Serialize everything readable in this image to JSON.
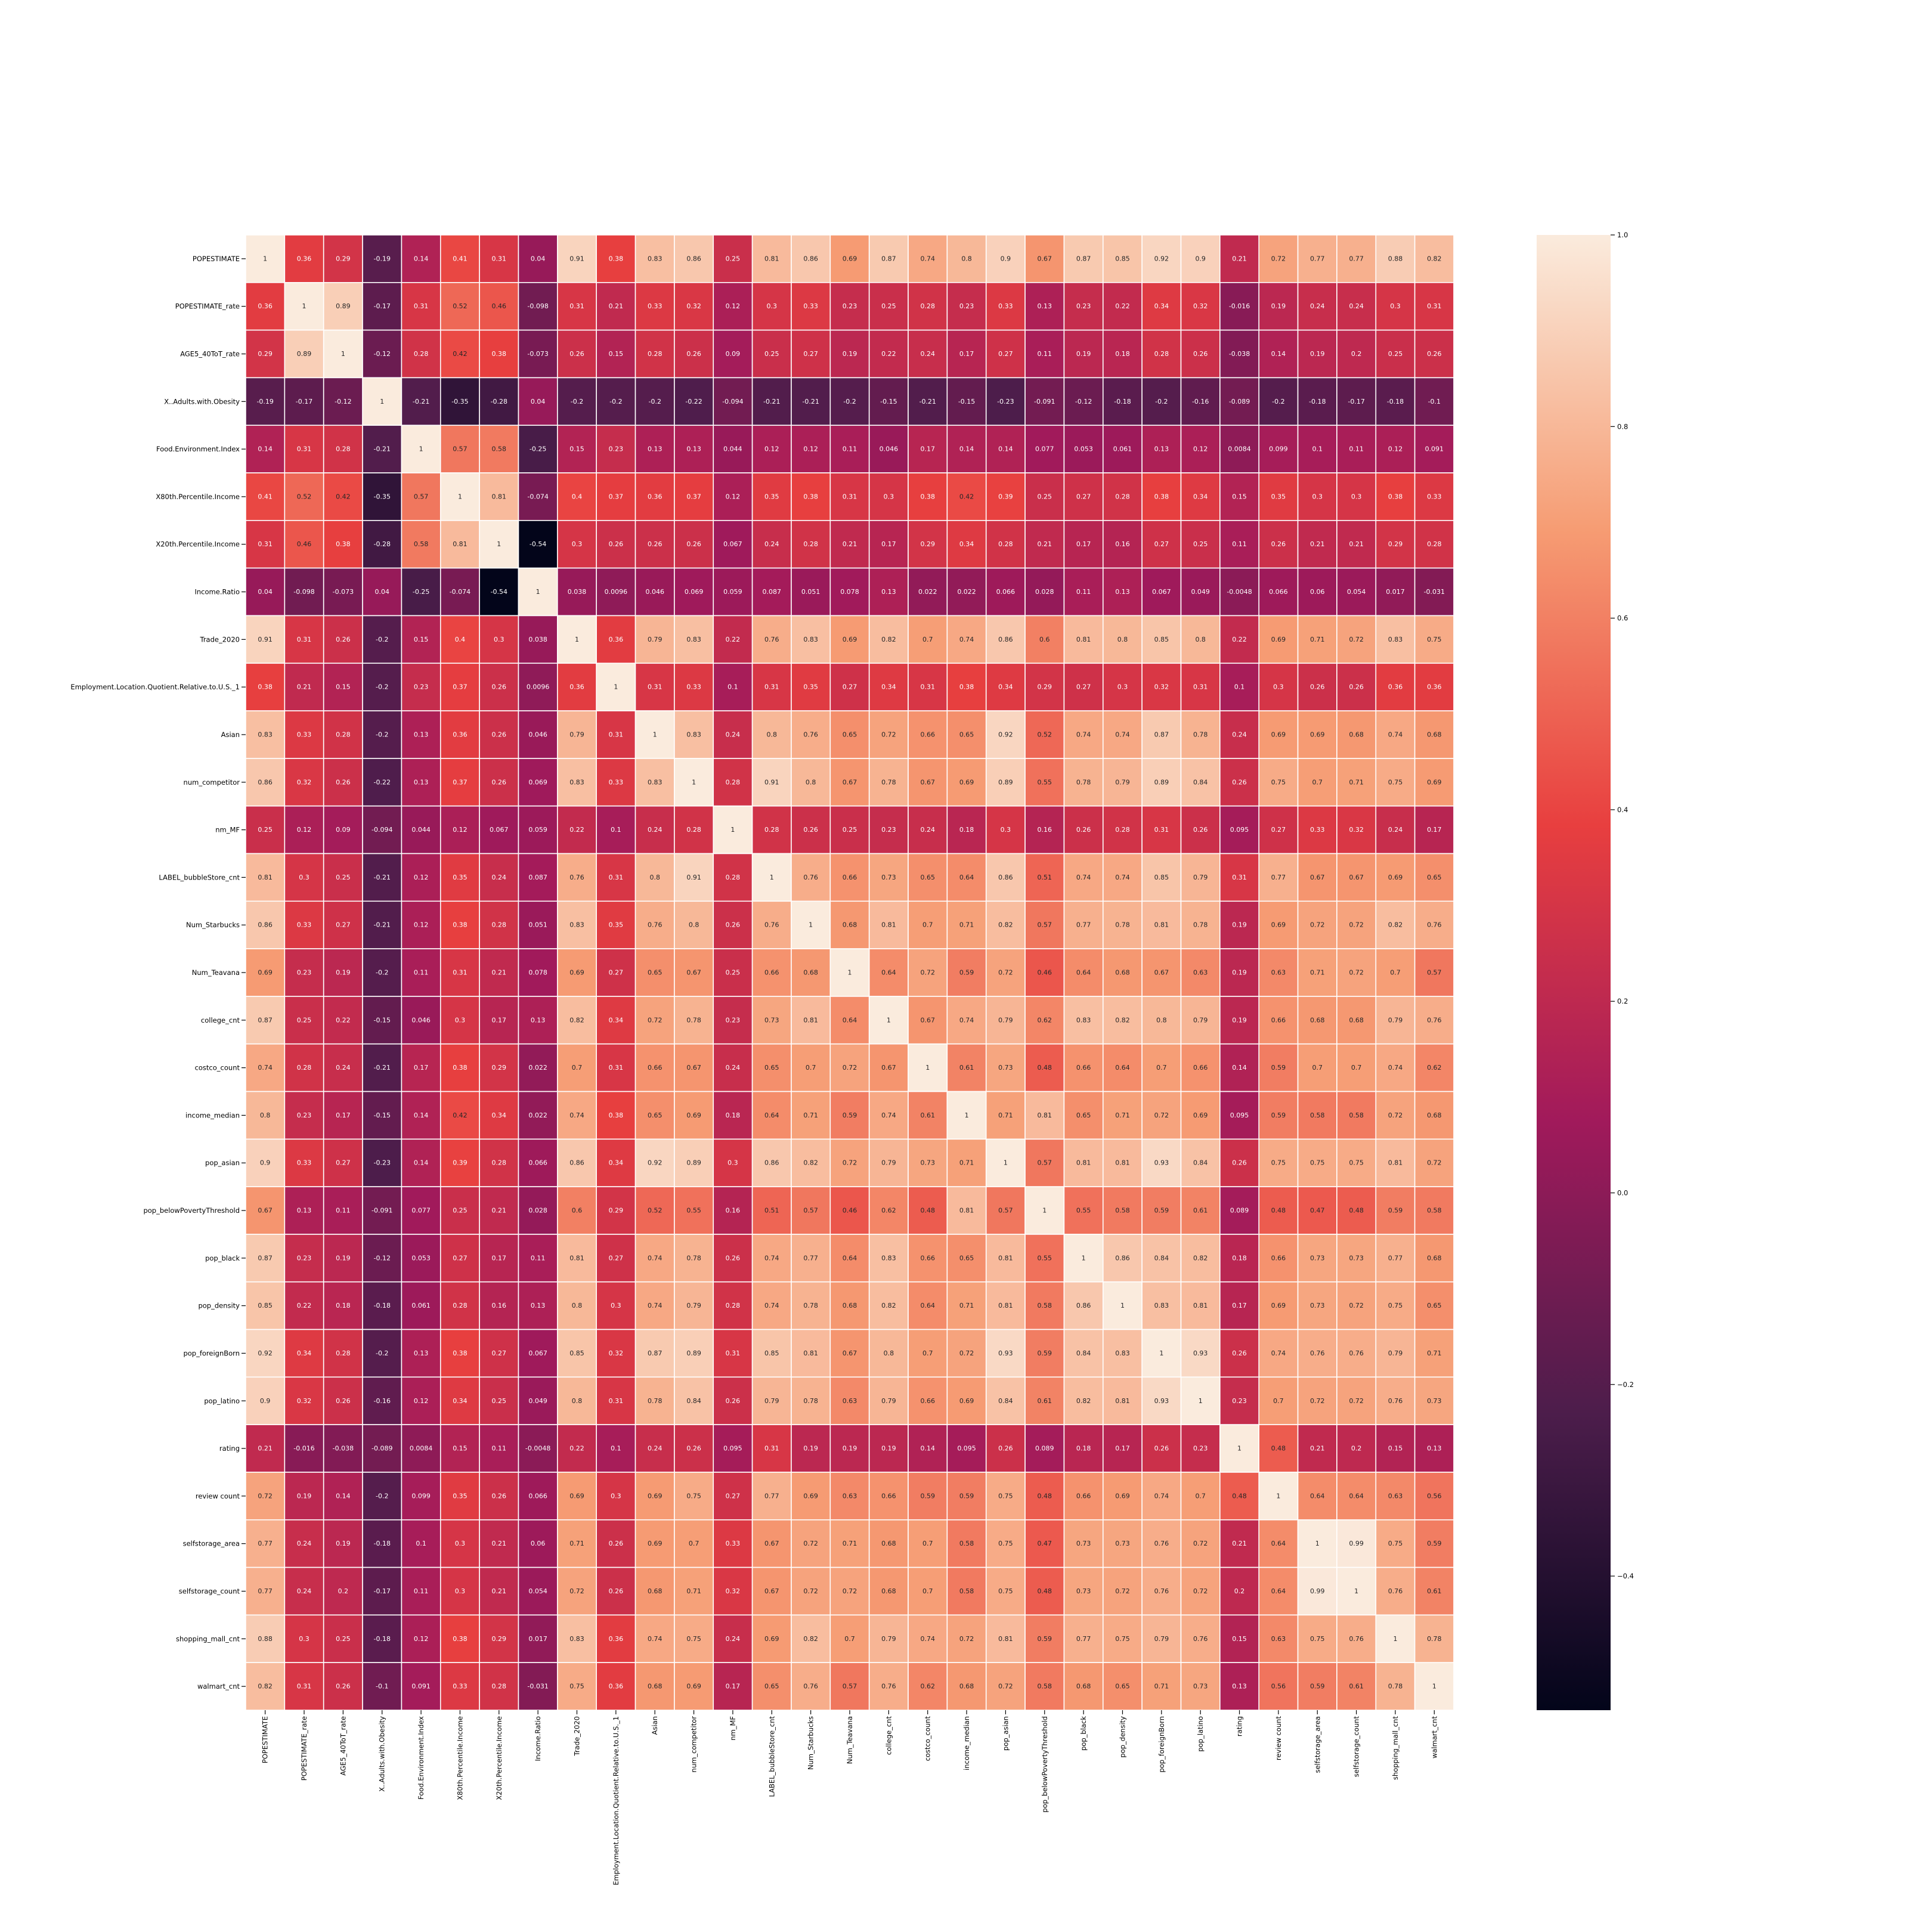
{
  "chart_data": {
    "type": "heatmap",
    "title": "",
    "xlabel": "",
    "ylabel": "",
    "labels": [
      "POPESTIMATE",
      "POPESTIMATE_rate",
      "AGE5_40ToT_rate",
      "X..Adults.with.Obesity",
      "Food.Environment.Index",
      "X80th.Percentile.Income",
      "X20th.Percentile.Income",
      "Income.Ratio",
      "Trade_2020",
      "Employment.Location.Quotient.Relative.to.U.S._1",
      "Asian",
      "num_competitor",
      "nm_MF",
      "LABEL_bubbleStore_cnt",
      "Num_Starbucks",
      "Num_Teavana",
      "college_cnt",
      "costco_count",
      "income_median",
      "pop_asian",
      "pop_belowPovertyThreshold",
      "pop_black",
      "pop_density",
      "pop_foreignBorn",
      "pop_latino",
      "rating",
      "review count",
      "selfstorage_area",
      "selfstorage_count",
      "shopping_mall_cnt",
      "walmart_cnt"
    ],
    "annotations": [
      [
        "1",
        "0.36",
        "0.29",
        "-0.19",
        "0.14",
        "0.41",
        "0.31",
        "0.04",
        "0.91",
        "0.38",
        "0.83",
        "0.86",
        "0.25",
        "0.81",
        "0.86",
        "0.69",
        "0.87",
        "0.74",
        "0.8",
        "0.9",
        "0.67",
        "0.87",
        "0.85",
        "0.92",
        "0.9",
        "0.21",
        "0.72",
        "0.77",
        "0.77",
        "0.88",
        "0.82"
      ],
      [
        "0.36",
        "1",
        "0.89",
        "-0.17",
        "0.31",
        "0.52",
        "0.46",
        "-0.098",
        "0.31",
        "0.21",
        "0.33",
        "0.32",
        "0.12",
        "0.3",
        "0.33",
        "0.23",
        "0.25",
        "0.28",
        "0.23",
        "0.33",
        "0.13",
        "0.23",
        "0.22",
        "0.34",
        "0.32",
        "-0.016",
        "0.19",
        "0.24",
        "0.24",
        "0.3",
        "0.31"
      ],
      [
        "0.29",
        "0.89",
        "1",
        "-0.12",
        "0.28",
        "0.42",
        "0.38",
        "-0.073",
        "0.26",
        "0.15",
        "0.28",
        "0.26",
        "0.09",
        "0.25",
        "0.27",
        "0.19",
        "0.22",
        "0.24",
        "0.17",
        "0.27",
        "0.11",
        "0.19",
        "0.18",
        "0.28",
        "0.26",
        "-0.038",
        "0.14",
        "0.19",
        "0.2",
        "0.25",
        "0.26"
      ],
      [
        "-0.19",
        "-0.17",
        "-0.12",
        "1",
        "-0.21",
        "-0.35",
        "-0.28",
        "0.04",
        "-0.2",
        "-0.2",
        "-0.2",
        "-0.22",
        "-0.094",
        "-0.21",
        "-0.21",
        "-0.2",
        "-0.15",
        "-0.21",
        "-0.15",
        "-0.23",
        "-0.091",
        "-0.12",
        "-0.18",
        "-0.2",
        "-0.16",
        "-0.089",
        "-0.2",
        "-0.18",
        "-0.17",
        "-0.18",
        "-0.1"
      ],
      [
        "0.14",
        "0.31",
        "0.28",
        "-0.21",
        "1",
        "0.57",
        "0.58",
        "-0.25",
        "0.15",
        "0.23",
        "0.13",
        "0.13",
        "0.044",
        "0.12",
        "0.12",
        "0.11",
        "0.046",
        "0.17",
        "0.14",
        "0.14",
        "0.077",
        "0.053",
        "0.061",
        "0.13",
        "0.12",
        "0.0084",
        "0.099",
        "0.1",
        "0.11",
        "0.12",
        "0.091"
      ],
      [
        "0.41",
        "0.52",
        "0.42",
        "-0.35",
        "0.57",
        "1",
        "0.81",
        "-0.074",
        "0.4",
        "0.37",
        "0.36",
        "0.37",
        "0.12",
        "0.35",
        "0.38",
        "0.31",
        "0.3",
        "0.38",
        "0.42",
        "0.39",
        "0.25",
        "0.27",
        "0.28",
        "0.38",
        "0.34",
        "0.15",
        "0.35",
        "0.3",
        "0.3",
        "0.38",
        "0.33"
      ],
      [
        "0.31",
        "0.46",
        "0.38",
        "-0.28",
        "0.58",
        "0.81",
        "1",
        "-0.54",
        "0.3",
        "0.26",
        "0.26",
        "0.26",
        "0.067",
        "0.24",
        "0.28",
        "0.21",
        "0.17",
        "0.29",
        "0.34",
        "0.28",
        "0.21",
        "0.17",
        "0.16",
        "0.27",
        "0.25",
        "0.11",
        "0.26",
        "0.21",
        "0.21",
        "0.29",
        "0.28"
      ],
      [
        "0.04",
        "-0.098",
        "-0.073",
        "0.04",
        "-0.25",
        "-0.074",
        "-0.54",
        "1",
        "0.038",
        "0.0096",
        "0.046",
        "0.069",
        "0.059",
        "0.087",
        "0.051",
        "0.078",
        "0.13",
        "0.022",
        "0.022",
        "0.066",
        "0.028",
        "0.11",
        "0.13",
        "0.067",
        "0.049",
        "-0.0048",
        "0.066",
        "0.06",
        "0.054",
        "0.017",
        "-0.031"
      ],
      [
        "0.91",
        "0.31",
        "0.26",
        "-0.2",
        "0.15",
        "0.4",
        "0.3",
        "0.038",
        "1",
        "0.36",
        "0.79",
        "0.83",
        "0.22",
        "0.76",
        "0.83",
        "0.69",
        "0.82",
        "0.7",
        "0.74",
        "0.86",
        "0.6",
        "0.81",
        "0.8",
        "0.85",
        "0.8",
        "0.22",
        "0.69",
        "0.71",
        "0.72",
        "0.83",
        "0.75"
      ],
      [
        "0.38",
        "0.21",
        "0.15",
        "-0.2",
        "0.23",
        "0.37",
        "0.26",
        "0.0096",
        "0.36",
        "1",
        "0.31",
        "0.33",
        "0.1",
        "0.31",
        "0.35",
        "0.27",
        "0.34",
        "0.31",
        "0.38",
        "0.34",
        "0.29",
        "0.27",
        "0.3",
        "0.32",
        "0.31",
        "0.1",
        "0.3",
        "0.26",
        "0.26",
        "0.36",
        "0.36"
      ],
      [
        "0.83",
        "0.33",
        "0.28",
        "-0.2",
        "0.13",
        "0.36",
        "0.26",
        "0.046",
        "0.79",
        "0.31",
        "1",
        "0.83",
        "0.24",
        "0.8",
        "0.76",
        "0.65",
        "0.72",
        "0.66",
        "0.65",
        "0.92",
        "0.52",
        "0.74",
        "0.74",
        "0.87",
        "0.78",
        "0.24",
        "0.69",
        "0.69",
        "0.68",
        "0.74",
        "0.68"
      ],
      [
        "0.86",
        "0.32",
        "0.26",
        "-0.22",
        "0.13",
        "0.37",
        "0.26",
        "0.069",
        "0.83",
        "0.33",
        "0.83",
        "1",
        "0.28",
        "0.91",
        "0.8",
        "0.67",
        "0.78",
        "0.67",
        "0.69",
        "0.89",
        "0.55",
        "0.78",
        "0.79",
        "0.89",
        "0.84",
        "0.26",
        "0.75",
        "0.7",
        "0.71",
        "0.75",
        "0.69"
      ],
      [
        "0.25",
        "0.12",
        "0.09",
        "-0.094",
        "0.044",
        "0.12",
        "0.067",
        "0.059",
        "0.22",
        "0.1",
        "0.24",
        "0.28",
        "1",
        "0.28",
        "0.26",
        "0.25",
        "0.23",
        "0.24",
        "0.18",
        "0.3",
        "0.16",
        "0.26",
        "0.28",
        "0.31",
        "0.26",
        "0.095",
        "0.27",
        "0.33",
        "0.32",
        "0.24",
        "0.17"
      ],
      [
        "0.81",
        "0.3",
        "0.25",
        "-0.21",
        "0.12",
        "0.35",
        "0.24",
        "0.087",
        "0.76",
        "0.31",
        "0.8",
        "0.91",
        "0.28",
        "1",
        "0.76",
        "0.66",
        "0.73",
        "0.65",
        "0.64",
        "0.86",
        "0.51",
        "0.74",
        "0.74",
        "0.85",
        "0.79",
        "0.31",
        "0.77",
        "0.67",
        "0.67",
        "0.69",
        "0.65"
      ],
      [
        "0.86",
        "0.33",
        "0.27",
        "-0.21",
        "0.12",
        "0.38",
        "0.28",
        "0.051",
        "0.83",
        "0.35",
        "0.76",
        "0.8",
        "0.26",
        "0.76",
        "1",
        "0.68",
        "0.81",
        "0.7",
        "0.71",
        "0.82",
        "0.57",
        "0.77",
        "0.78",
        "0.81",
        "0.78",
        "0.19",
        "0.69",
        "0.72",
        "0.72",
        "0.82",
        "0.76"
      ],
      [
        "0.69",
        "0.23",
        "0.19",
        "-0.2",
        "0.11",
        "0.31",
        "0.21",
        "0.078",
        "0.69",
        "0.27",
        "0.65",
        "0.67",
        "0.25",
        "0.66",
        "0.68",
        "1",
        "0.64",
        "0.72",
        "0.59",
        "0.72",
        "0.46",
        "0.64",
        "0.68",
        "0.67",
        "0.63",
        "0.19",
        "0.63",
        "0.71",
        "0.72",
        "0.7",
        "0.57"
      ],
      [
        "0.87",
        "0.25",
        "0.22",
        "-0.15",
        "0.046",
        "0.3",
        "0.17",
        "0.13",
        "0.82",
        "0.34",
        "0.72",
        "0.78",
        "0.23",
        "0.73",
        "0.81",
        "0.64",
        "1",
        "0.67",
        "0.74",
        "0.79",
        "0.62",
        "0.83",
        "0.82",
        "0.8",
        "0.79",
        "0.19",
        "0.66",
        "0.68",
        "0.68",
        "0.79",
        "0.76"
      ],
      [
        "0.74",
        "0.28",
        "0.24",
        "-0.21",
        "0.17",
        "0.38",
        "0.29",
        "0.022",
        "0.7",
        "0.31",
        "0.66",
        "0.67",
        "0.24",
        "0.65",
        "0.7",
        "0.72",
        "0.67",
        "1",
        "0.61",
        "0.73",
        "0.48",
        "0.66",
        "0.64",
        "0.7",
        "0.66",
        "0.14",
        "0.59",
        "0.7",
        "0.7",
        "0.74",
        "0.62"
      ],
      [
        "0.8",
        "0.23",
        "0.17",
        "-0.15",
        "0.14",
        "0.42",
        "0.34",
        "0.022",
        "0.74",
        "0.38",
        "0.65",
        "0.69",
        "0.18",
        "0.64",
        "0.71",
        "0.59",
        "0.74",
        "0.61",
        "1",
        "0.71",
        "0.81",
        "0.65",
        "0.71",
        "0.72",
        "0.69",
        "0.095",
        "0.59",
        "0.58",
        "0.58",
        "0.72",
        "0.68"
      ],
      [
        "0.9",
        "0.33",
        "0.27",
        "-0.23",
        "0.14",
        "0.39",
        "0.28",
        "0.066",
        "0.86",
        "0.34",
        "0.92",
        "0.89",
        "0.3",
        "0.86",
        "0.82",
        "0.72",
        "0.79",
        "0.73",
        "0.71",
        "1",
        "0.57",
        "0.81",
        "0.81",
        "0.93",
        "0.84",
        "0.26",
        "0.75",
        "0.75",
        "0.75",
        "0.81",
        "0.72"
      ],
      [
        "0.67",
        "0.13",
        "0.11",
        "-0.091",
        "0.077",
        "0.25",
        "0.21",
        "0.028",
        "0.6",
        "0.29",
        "0.52",
        "0.55",
        "0.16",
        "0.51",
        "0.57",
        "0.46",
        "0.62",
        "0.48",
        "0.81",
        "0.57",
        "1",
        "0.55",
        "0.58",
        "0.59",
        "0.61",
        "0.089",
        "0.48",
        "0.47",
        "0.48",
        "0.59",
        "0.58"
      ],
      [
        "0.87",
        "0.23",
        "0.19",
        "-0.12",
        "0.053",
        "0.27",
        "0.17",
        "0.11",
        "0.81",
        "0.27",
        "0.74",
        "0.78",
        "0.26",
        "0.74",
        "0.77",
        "0.64",
        "0.83",
        "0.66",
        "0.65",
        "0.81",
        "0.55",
        "1",
        "0.86",
        "0.84",
        "0.82",
        "0.18",
        "0.66",
        "0.73",
        "0.73",
        "0.77",
        "0.68"
      ],
      [
        "0.85",
        "0.22",
        "0.18",
        "-0.18",
        "0.061",
        "0.28",
        "0.16",
        "0.13",
        "0.8",
        "0.3",
        "0.74",
        "0.79",
        "0.28",
        "0.74",
        "0.78",
        "0.68",
        "0.82",
        "0.64",
        "0.71",
        "0.81",
        "0.58",
        "0.86",
        "1",
        "0.83",
        "0.81",
        "0.17",
        "0.69",
        "0.73",
        "0.72",
        "0.75",
        "0.65"
      ],
      [
        "0.92",
        "0.34",
        "0.28",
        "-0.2",
        "0.13",
        "0.38",
        "0.27",
        "0.067",
        "0.85",
        "0.32",
        "0.87",
        "0.89",
        "0.31",
        "0.85",
        "0.81",
        "0.67",
        "0.8",
        "0.7",
        "0.72",
        "0.93",
        "0.59",
        "0.84",
        "0.83",
        "1",
        "0.93",
        "0.26",
        "0.74",
        "0.76",
        "0.76",
        "0.79",
        "0.71"
      ],
      [
        "0.9",
        "0.32",
        "0.26",
        "-0.16",
        "0.12",
        "0.34",
        "0.25",
        "0.049",
        "0.8",
        "0.31",
        "0.78",
        "0.84",
        "0.26",
        "0.79",
        "0.78",
        "0.63",
        "0.79",
        "0.66",
        "0.69",
        "0.84",
        "0.61",
        "0.82",
        "0.81",
        "0.93",
        "1",
        "0.23",
        "0.7",
        "0.72",
        "0.72",
        "0.76",
        "0.73"
      ],
      [
        "0.21",
        "-0.016",
        "-0.038",
        "-0.089",
        "0.0084",
        "0.15",
        "0.11",
        "-0.0048",
        "0.22",
        "0.1",
        "0.24",
        "0.26",
        "0.095",
        "0.31",
        "0.19",
        "0.19",
        "0.19",
        "0.14",
        "0.095",
        "0.26",
        "0.089",
        "0.18",
        "0.17",
        "0.26",
        "0.23",
        "1",
        "0.48",
        "0.21",
        "0.2",
        "0.15",
        "0.13"
      ],
      [
        "0.72",
        "0.19",
        "0.14",
        "-0.2",
        "0.099",
        "0.35",
        "0.26",
        "0.066",
        "0.69",
        "0.3",
        "0.69",
        "0.75",
        "0.27",
        "0.77",
        "0.69",
        "0.63",
        "0.66",
        "0.59",
        "0.59",
        "0.75",
        "0.48",
        "0.66",
        "0.69",
        "0.74",
        "0.7",
        "0.48",
        "1",
        "0.64",
        "0.64",
        "0.63",
        "0.56"
      ],
      [
        "0.77",
        "0.24",
        "0.19",
        "-0.18",
        "0.1",
        "0.3",
        "0.21",
        "0.06",
        "0.71",
        "0.26",
        "0.69",
        "0.7",
        "0.33",
        "0.67",
        "0.72",
        "0.71",
        "0.68",
        "0.7",
        "0.58",
        "0.75",
        "0.47",
        "0.73",
        "0.73",
        "0.76",
        "0.72",
        "0.21",
        "0.64",
        "1",
        "0.99",
        "0.75",
        "0.59"
      ],
      [
        "0.77",
        "0.24",
        "0.2",
        "-0.17",
        "0.11",
        "0.3",
        "0.21",
        "0.054",
        "0.72",
        "0.26",
        "0.68",
        "0.71",
        "0.32",
        "0.67",
        "0.72",
        "0.72",
        "0.68",
        "0.7",
        "0.58",
        "0.75",
        "0.48",
        "0.73",
        "0.72",
        "0.76",
        "0.72",
        "0.2",
        "0.64",
        "0.99",
        "1",
        "0.76",
        "0.61"
      ],
      [
        "0.88",
        "0.3",
        "0.25",
        "-0.18",
        "0.12",
        "0.38",
        "0.29",
        "0.017",
        "0.83",
        "0.36",
        "0.74",
        "0.75",
        "0.24",
        "0.69",
        "0.82",
        "0.7",
        "0.79",
        "0.74",
        "0.72",
        "0.81",
        "0.59",
        "0.77",
        "0.75",
        "0.79",
        "0.76",
        "0.15",
        "0.63",
        "0.75",
        "0.76",
        "1",
        "0.78"
      ],
      [
        "0.82",
        "0.31",
        "0.26",
        "-0.1",
        "0.091",
        "0.33",
        "0.28",
        "-0.031",
        "0.75",
        "0.36",
        "0.68",
        "0.69",
        "0.17",
        "0.65",
        "0.76",
        "0.57",
        "0.76",
        "0.62",
        "0.68",
        "0.72",
        "0.58",
        "0.68",
        "0.65",
        "0.71",
        "0.73",
        "0.13",
        "0.56",
        "0.59",
        "0.61",
        "0.78",
        "1"
      ]
    ],
    "vmin": -0.54,
    "vmax": 1,
    "colorbar": {
      "ticks": [
        1.0,
        0.8,
        0.6,
        0.4,
        0.2,
        0.0,
        -0.2,
        -0.4
      ],
      "tick_labels": [
        "1.0",
        "0.8",
        "0.6",
        "0.4",
        "0.2",
        "0.0",
        "−0.2",
        "−0.4"
      ]
    },
    "colormap": [
      "#03051a",
      "#4c1d4b",
      "#a11a5b",
      "#e83f3f",
      "#f69c73",
      "#faebdd"
    ],
    "grid": false,
    "legend": "colorbar-right"
  }
}
